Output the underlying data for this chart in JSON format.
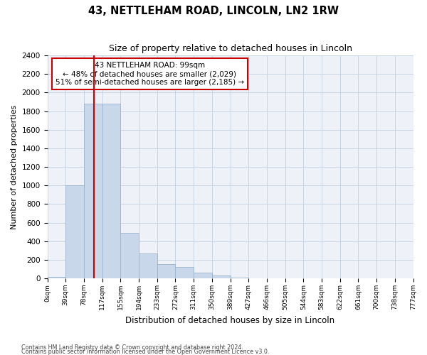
{
  "title1": "43, NETTLEHAM ROAD, LINCOLN, LN2 1RW",
  "title2": "Size of property relative to detached houses in Lincoln",
  "xlabel": "Distribution of detached houses by size in Lincoln",
  "ylabel": "Number of detached properties",
  "footer1": "Contains HM Land Registry data © Crown copyright and database right 2024.",
  "footer2": "Contains public sector information licensed under the Open Government Licence v3.0.",
  "annotation_line1": "43 NETTLEHAM ROAD: 99sqm",
  "annotation_line2": "← 48% of detached houses are smaller (2,029)",
  "annotation_line3": "51% of semi-detached houses are larger (2,185) →",
  "bar_color": "#c8d8ea",
  "bar_edge_color": "#9ab4cc",
  "grid_color": "#c8d4e4",
  "background_color": "#eef2f8",
  "red_line_color": "#cc0000",
  "annotation_box_color": "#cc0000",
  "bin_labels": [
    "0sqm",
    "39sqm",
    "78sqm",
    "117sqm",
    "155sqm",
    "194sqm",
    "233sqm",
    "272sqm",
    "311sqm",
    "350sqm",
    "389sqm",
    "427sqm",
    "466sqm",
    "505sqm",
    "544sqm",
    "583sqm",
    "622sqm",
    "661sqm",
    "700sqm",
    "738sqm",
    "777sqm"
  ],
  "bar_values": [
    18,
    1000,
    1880,
    1880,
    490,
    265,
    155,
    125,
    65,
    28,
    10,
    3,
    2,
    1,
    0,
    0,
    0,
    0,
    0,
    0
  ],
  "red_line_x": 2.55,
  "ylim": [
    0,
    2400
  ],
  "yticks": [
    0,
    200,
    400,
    600,
    800,
    1000,
    1200,
    1400,
    1600,
    1800,
    2000,
    2200,
    2400
  ]
}
